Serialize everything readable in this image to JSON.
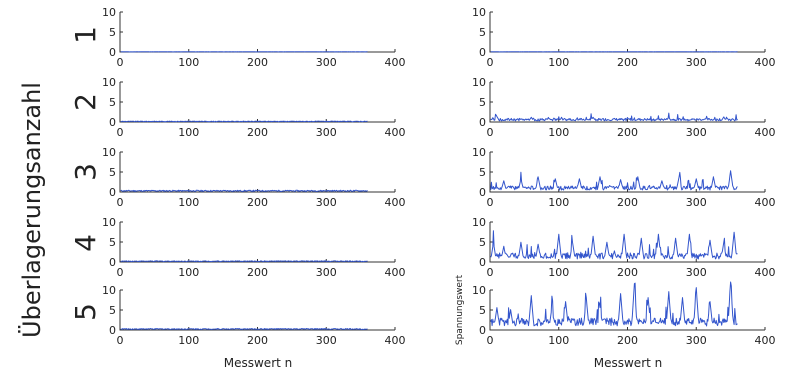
{
  "figure": {
    "y_axis_title": "Überlagerungsanzahl",
    "x_axis_title": "Messwert n",
    "y_axis_title_right_bottom": "Spannungswert",
    "rows": [
      {
        "label": "1"
      },
      {
        "label": "2"
      },
      {
        "label": "3"
      },
      {
        "label": "4"
      },
      {
        "label": "5"
      }
    ]
  },
  "chart_data": {
    "type": "line",
    "xlim": [
      0,
      400
    ],
    "ylim": [
      0,
      10
    ],
    "x_ticks": [
      "0",
      "100",
      "200",
      "300",
      "400"
    ],
    "y_ticks": [
      "0",
      "5",
      "10"
    ],
    "series_color": "#3355cc",
    "n_points": 360,
    "columns": [
      {
        "panels": [
          {
            "row": "1",
            "baseline": 0.05,
            "peaks": []
          },
          {
            "row": "2",
            "baseline": 0.15,
            "peaks": []
          },
          {
            "row": "3",
            "baseline": 0.3,
            "peaks": []
          },
          {
            "row": "4",
            "baseline": 0.2,
            "peaks": []
          },
          {
            "row": "5",
            "baseline": 0.25,
            "peaks": []
          }
        ]
      },
      {
        "panels": [
          {
            "row": "1",
            "baseline": 0.05,
            "peaks": []
          },
          {
            "row": "2",
            "baseline": 0.6,
            "peaks": [
              [
                10,
                1.2
              ],
              [
                60,
                1.0
              ],
              [
                150,
                1.0
              ],
              [
                260,
                1.0
              ],
              [
                340,
                1.1
              ]
            ]
          },
          {
            "row": "3",
            "baseline": 1.0,
            "peaks": [
              [
                20,
                2.5
              ],
              [
                45,
                3.0
              ],
              [
                70,
                3.5
              ],
              [
                95,
                3.0
              ],
              [
                130,
                3.0
              ],
              [
                160,
                3.5
              ],
              [
                190,
                2.8
              ],
              [
                215,
                3.5
              ],
              [
                250,
                2.5
              ],
              [
                275,
                3.5
              ],
              [
                300,
                3.0
              ],
              [
                325,
                3.5
              ],
              [
                350,
                5.0
              ]
            ]
          },
          {
            "row": "4",
            "baseline": 1.5,
            "peaks": [
              [
                5,
                4.5
              ],
              [
                20,
                3.5
              ],
              [
                45,
                4.5
              ],
              [
                70,
                4.0
              ],
              [
                100,
                6.5
              ],
              [
                120,
                4.5
              ],
              [
                150,
                6.0
              ],
              [
                170,
                4.5
              ],
              [
                195,
                6.5
              ],
              [
                220,
                5.5
              ],
              [
                245,
                6.5
              ],
              [
                270,
                5.5
              ],
              [
                290,
                6.5
              ],
              [
                320,
                5.0
              ],
              [
                340,
                4.5
              ],
              [
                355,
                7.0
              ]
            ]
          },
          {
            "row": "5",
            "baseline": 2.0,
            "peaks": [
              [
                10,
                5.0
              ],
              [
                30,
                4.5
              ],
              [
                60,
                8.0
              ],
              [
                90,
                5.0
              ],
              [
                110,
                6.5
              ],
              [
                140,
                7.5
              ],
              [
                160,
                5.0
              ],
              [
                190,
                8.5
              ],
              [
                210,
                11.0
              ],
              [
                230,
                7.5
              ],
              [
                260,
                9.0
              ],
              [
                280,
                7.5
              ],
              [
                300,
                10.0
              ],
              [
                320,
                6.5
              ],
              [
                350,
                12.0
              ]
            ]
          }
        ]
      }
    ]
  }
}
